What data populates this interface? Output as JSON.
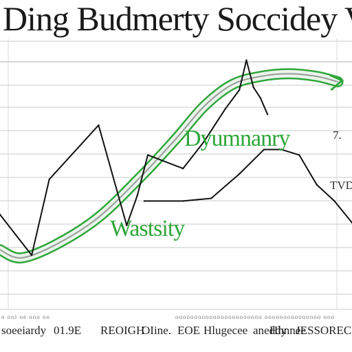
{
  "chart_data": {
    "type": "line",
    "title": "Ding Budmerty Soccidey Vin",
    "xlabel": "",
    "ylabel": "",
    "grid": true,
    "annotations": [
      "Dyumnanry",
      "Wastsity"
    ],
    "right_labels": [
      "7.",
      "TVD"
    ],
    "footer_labels": [
      "soeeiardy",
      "01.9E",
      "REOIGH",
      "OIine.",
      "EOE",
      "Hlugecee",
      "aneddy",
      "Hhnnee",
      "JESSOREC"
    ],
    "footer_dots": [
      "o ooi oe ooo oo",
      "ooooooooooooooooooooooo ooooooooooooooo ooo"
    ],
    "colors": {
      "black_line": "#111111",
      "green_band": "#2fa63a",
      "grid": "#c8c8c8"
    },
    "xlim": [
      0,
      100
    ],
    "ylim": [
      0,
      100
    ],
    "series": [
      {
        "x": [
          0,
          9,
          14,
          28,
          36,
          39,
          41,
          42,
          52,
          58,
          64,
          68,
          70,
          72,
          74,
          76
        ],
        "values": [
          35,
          20,
          48,
          68,
          31,
          42,
          52,
          57,
          52,
          62,
          74,
          81,
          92,
          82,
          78,
          72
        ]
      },
      {
        "x": [
          41,
          52,
          60,
          68,
          75,
          80,
          85,
          90,
          95,
          100
        ],
        "values": [
          40,
          40,
          41,
          50,
          59,
          59,
          57,
          46,
          40,
          32
        ]
      },
      {
        "x": [
          0,
          6,
          16,
          28,
          40,
          50,
          58,
          66,
          74,
          82,
          90,
          96
        ],
        "values": [
          22,
          19,
          24,
          34,
          49,
          63,
          75,
          83,
          86,
          87,
          86,
          84
        ]
      }
    ]
  }
}
